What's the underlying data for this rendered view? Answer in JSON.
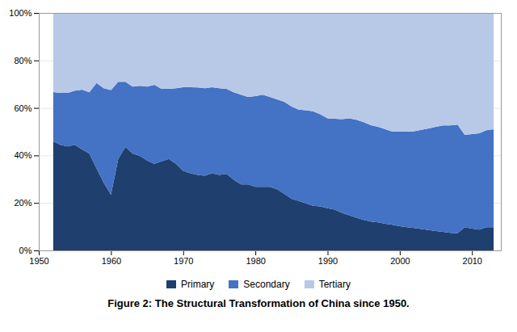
{
  "chart_data": {
    "type": "area",
    "stacked": true,
    "title": "Figure 2: The Structural Transformation of China since 1950.",
    "x": [
      1952,
      1953,
      1954,
      1955,
      1956,
      1957,
      1958,
      1959,
      1960,
      1961,
      1962,
      1963,
      1964,
      1965,
      1966,
      1967,
      1968,
      1969,
      1970,
      1971,
      1972,
      1973,
      1974,
      1975,
      1976,
      1977,
      1978,
      1979,
      1980,
      1981,
      1982,
      1983,
      1984,
      1985,
      1986,
      1987,
      1988,
      1989,
      1990,
      1991,
      1992,
      1993,
      1994,
      1995,
      1996,
      1997,
      1998,
      1999,
      2000,
      2001,
      2002,
      2003,
      2004,
      2005,
      2006,
      2007,
      2008,
      2009,
      2010,
      2011,
      2012,
      2013
    ],
    "series": [
      {
        "name": "Primary",
        "color": "#1f3f6e",
        "values": [
          0.459,
          0.445,
          0.438,
          0.445,
          0.425,
          0.408,
          0.345,
          0.285,
          0.235,
          0.385,
          0.435,
          0.408,
          0.398,
          0.378,
          0.365,
          0.375,
          0.385,
          0.365,
          0.335,
          0.325,
          0.318,
          0.315,
          0.325,
          0.318,
          0.322,
          0.298,
          0.278,
          0.278,
          0.268,
          0.268,
          0.268,
          0.258,
          0.238,
          0.218,
          0.208,
          0.198,
          0.188,
          0.185,
          0.178,
          0.172,
          0.158,
          0.148,
          0.138,
          0.128,
          0.122,
          0.118,
          0.112,
          0.108,
          0.102,
          0.098,
          0.094,
          0.09,
          0.086,
          0.082,
          0.078,
          0.074,
          0.072,
          0.098,
          0.092,
          0.088,
          0.098,
          0.098
        ]
      },
      {
        "name": "Secondary",
        "color": "#4472c4",
        "values": [
          0.208,
          0.218,
          0.225,
          0.228,
          0.252,
          0.258,
          0.36,
          0.398,
          0.44,
          0.325,
          0.275,
          0.282,
          0.295,
          0.312,
          0.332,
          0.305,
          0.295,
          0.318,
          0.352,
          0.362,
          0.368,
          0.368,
          0.362,
          0.365,
          0.358,
          0.368,
          0.378,
          0.368,
          0.382,
          0.388,
          0.378,
          0.378,
          0.388,
          0.388,
          0.385,
          0.392,
          0.398,
          0.388,
          0.378,
          0.382,
          0.395,
          0.408,
          0.412,
          0.412,
          0.405,
          0.402,
          0.398,
          0.392,
          0.398,
          0.402,
          0.408,
          0.418,
          0.428,
          0.438,
          0.448,
          0.452,
          0.458,
          0.388,
          0.398,
          0.405,
          0.408,
          0.412
        ]
      },
      {
        "name": "Tertiary",
        "color": "#b8c9e8",
        "values": [
          0.333,
          0.337,
          0.337,
          0.327,
          0.323,
          0.334,
          0.295,
          0.317,
          0.325,
          0.29,
          0.29,
          0.31,
          0.307,
          0.31,
          0.303,
          0.32,
          0.32,
          0.317,
          0.313,
          0.313,
          0.314,
          0.317,
          0.313,
          0.317,
          0.32,
          0.334,
          0.344,
          0.354,
          0.35,
          0.344,
          0.354,
          0.364,
          0.374,
          0.394,
          0.407,
          0.41,
          0.414,
          0.427,
          0.444,
          0.446,
          0.447,
          0.444,
          0.45,
          0.46,
          0.473,
          0.48,
          0.49,
          0.5,
          0.5,
          0.5,
          0.498,
          0.492,
          0.486,
          0.48,
          0.474,
          0.474,
          0.47,
          0.514,
          0.51,
          0.507,
          0.494,
          0.49
        ]
      }
    ],
    "xlim": [
      1950,
      2014
    ],
    "xticks": [
      1950,
      1960,
      1970,
      1980,
      1990,
      2000,
      2010
    ],
    "ylim": [
      0,
      1.0
    ],
    "yticks": [
      {
        "value": 0,
        "label": "0%"
      },
      {
        "value": 0.2,
        "label": "20%"
      },
      {
        "value": 0.4,
        "label": "40%"
      },
      {
        "value": 0.6,
        "label": "60%"
      },
      {
        "value": 0.8,
        "label": "80%"
      },
      {
        "value": 1.0,
        "label": "100%"
      }
    ],
    "grid": true,
    "legend": "bottom"
  }
}
